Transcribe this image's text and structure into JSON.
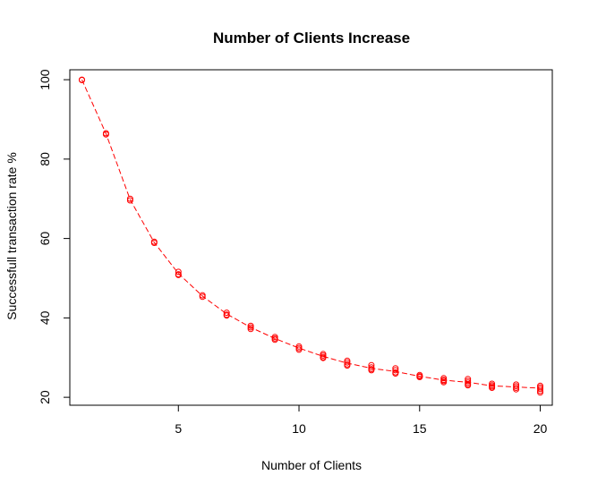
{
  "chart_data": {
    "type": "scatter",
    "title": "Number of Clients Increase",
    "xlabel": "Number of Clients",
    "ylabel": "Successfull transaction rate %",
    "xlim": [
      0.5,
      20.5
    ],
    "ylim": [
      18,
      102.5
    ],
    "xticks": [
      5,
      10,
      15,
      20
    ],
    "yticks": [
      20,
      40,
      60,
      80,
      100
    ],
    "color": "#ff0000",
    "marker": "open-circle",
    "line_style": "dashed",
    "grid": false,
    "legend": "none",
    "series": [
      {
        "points": [
          [
            1,
            100
          ],
          [
            1,
            99.9
          ],
          [
            2,
            86.5
          ],
          [
            2,
            86.2
          ],
          [
            3,
            70.0
          ],
          [
            3,
            69.6
          ],
          [
            4,
            59.2
          ],
          [
            4,
            58.9
          ],
          [
            5,
            51.6
          ],
          [
            5,
            51.0
          ],
          [
            5,
            50.8
          ],
          [
            6,
            45.7
          ],
          [
            6,
            45.3
          ],
          [
            7,
            41.3
          ],
          [
            7,
            40.8
          ],
          [
            7,
            40.6
          ],
          [
            8,
            38.0
          ],
          [
            8,
            37.6
          ],
          [
            8,
            37.2
          ],
          [
            9,
            35.2
          ],
          [
            9,
            34.8
          ],
          [
            9,
            34.5
          ],
          [
            10,
            32.8
          ],
          [
            10,
            32.4
          ],
          [
            10,
            32.0
          ],
          [
            11,
            30.9
          ],
          [
            11,
            30.5
          ],
          [
            11,
            30.1
          ],
          [
            11,
            29.9
          ],
          [
            12,
            29.2
          ],
          [
            12,
            28.8
          ],
          [
            12,
            28.3
          ],
          [
            12,
            28.0
          ],
          [
            13,
            28.1
          ],
          [
            13,
            27.5
          ],
          [
            13,
            27.1
          ],
          [
            13,
            26.8
          ],
          [
            14,
            27.3
          ],
          [
            14,
            26.8
          ],
          [
            14,
            26.3
          ],
          [
            14,
            26.0
          ],
          [
            15,
            25.6
          ],
          [
            15,
            25.3
          ],
          [
            15,
            25.1
          ],
          [
            16,
            24.8
          ],
          [
            16,
            24.4
          ],
          [
            16,
            24.1
          ],
          [
            16,
            23.8
          ],
          [
            17,
            24.6
          ],
          [
            17,
            24.1
          ],
          [
            17,
            23.7
          ],
          [
            17,
            23.3
          ],
          [
            17,
            23.0
          ],
          [
            18,
            23.4
          ],
          [
            18,
            23.0
          ],
          [
            18,
            22.7
          ],
          [
            18,
            22.4
          ],
          [
            19,
            23.2
          ],
          [
            19,
            22.8
          ],
          [
            19,
            22.4
          ],
          [
            19,
            22.0
          ],
          [
            20,
            22.9
          ],
          [
            20,
            22.5
          ],
          [
            20,
            22.1
          ],
          [
            20,
            21.6
          ],
          [
            20,
            21.2
          ]
        ],
        "line": [
          [
            1,
            100
          ],
          [
            2,
            86.4
          ],
          [
            3,
            69.8
          ],
          [
            4,
            59.0
          ],
          [
            5,
            51.2
          ],
          [
            6,
            45.5
          ],
          [
            7,
            41.0
          ],
          [
            8,
            37.6
          ],
          [
            9,
            34.8
          ],
          [
            10,
            32.4
          ],
          [
            11,
            30.3
          ],
          [
            12,
            28.6
          ],
          [
            13,
            27.3
          ],
          [
            14,
            26.5
          ],
          [
            15,
            25.3
          ],
          [
            16,
            24.3
          ],
          [
            17,
            23.8
          ],
          [
            18,
            22.9
          ],
          [
            19,
            22.6
          ],
          [
            20,
            22.3
          ]
        ]
      }
    ]
  }
}
